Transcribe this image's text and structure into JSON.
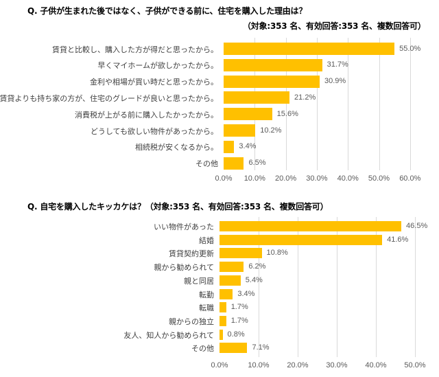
{
  "chart_data": [
    {
      "type": "bar",
      "orientation": "horizontal",
      "title": "Q. 子供が生まれた後ではなく、子供ができる前に、住宅を購入した理由は？",
      "subtitle": "（対象:353 名、有効回答:353 名、複数回答可）",
      "categories": [
        "賃貸と比較し、購入した方が得だと思ったから。",
        "早くマイホームが欲しかったから。",
        "金利や相場が買い時だと思ったから。",
        "賃貸よりも持ち家の方が、住宅のグレードが良いと思ったから。",
        "消費税が上がる前に購入したかったから。",
        "どうしても欲しい物件があったから。",
        "相続税が安くなるから。",
        "その他"
      ],
      "values": [
        55.0,
        31.7,
        30.9,
        21.2,
        15.6,
        10.2,
        3.4,
        6.5
      ],
      "value_labels": [
        "55.0%",
        "31.7%",
        "30.9%",
        "21.2%",
        "15.6%",
        "10.2%",
        "3.4%",
        "6.5%"
      ],
      "xlabel": "",
      "ylabel": "",
      "xlim": [
        0,
        60
      ],
      "ticks": [
        "0.0%",
        "10.0%",
        "20.0%",
        "30.0%",
        "40.0%",
        "50.0%",
        "60.0%"
      ],
      "grid": true,
      "legend": "none",
      "color": "#FFC000"
    },
    {
      "type": "bar",
      "orientation": "horizontal",
      "title": "Q. 自宅を購入したキッカケは？（対象:353 名、有効回答:353 名、複数回答可）",
      "categories": [
        "いい物件があった",
        "結婚",
        "賃貸契約更新",
        "親から勧められて",
        "親と同居",
        "転勤",
        "転職",
        "親からの独立",
        "友人、知人から勧められて",
        "その他"
      ],
      "values": [
        46.5,
        41.6,
        10.8,
        6.2,
        5.4,
        3.4,
        1.7,
        1.7,
        0.8,
        7.1
      ],
      "value_labels": [
        "46.5%",
        "41.6%",
        "10.8%",
        "6.2%",
        "5.4%",
        "3.4%",
        "1.7%",
        "1.7%",
        "0.8%",
        "7.1%"
      ],
      "xlabel": "",
      "ylabel": "",
      "xlim": [
        0,
        50
      ],
      "ticks": [
        "0.0%",
        "10.0%",
        "20.0%",
        "30.0%",
        "40.0%",
        "50.0%"
      ],
      "grid": true,
      "legend": "none",
      "color": "#FFC000"
    }
  ]
}
